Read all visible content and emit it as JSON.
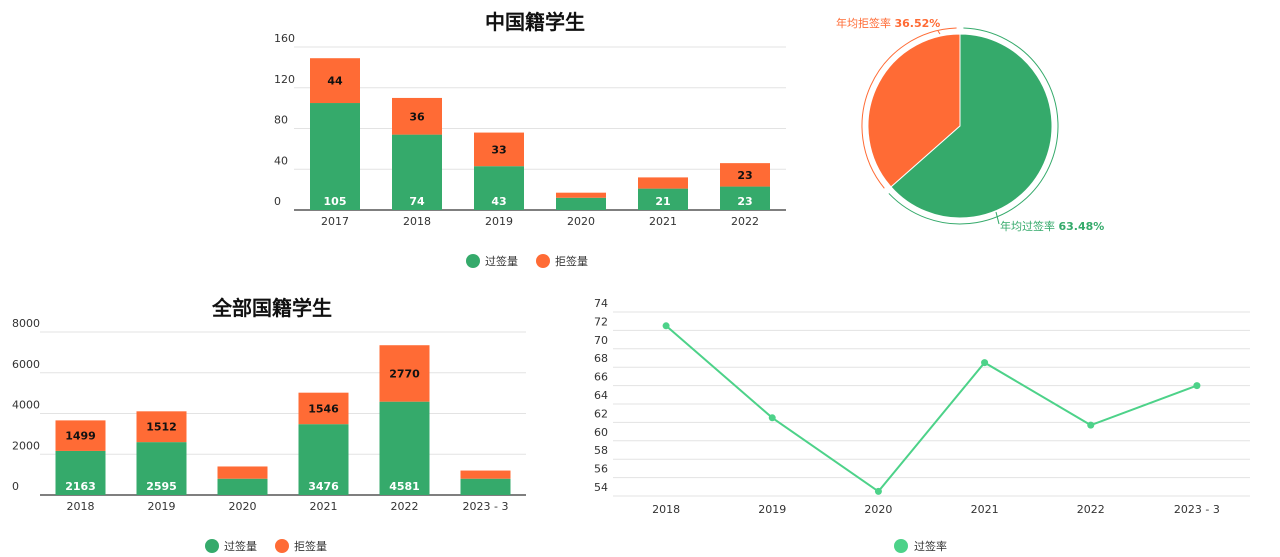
{
  "colors": {
    "pass": "#35aa6b",
    "reject": "#ff6b35",
    "rate_line": "#4dd289"
  },
  "chart_data": [
    {
      "id": "cn",
      "type": "bar",
      "stacked": true,
      "title": "中国籍学生",
      "categories": [
        "2017",
        "2018",
        "2019",
        "2020",
        "2021",
        "2022"
      ],
      "ylim": [
        0,
        160
      ],
      "yticks": [
        "0",
        "40",
        "80",
        "120",
        "160"
      ],
      "series": [
        {
          "name": "过签量",
          "values": [
            105,
            74,
            43,
            12,
            21,
            23
          ],
          "labels": [
            "105",
            "74",
            "43",
            "",
            "21",
            "23"
          ]
        },
        {
          "name": "拒签量",
          "values": [
            44,
            36,
            33,
            5,
            11,
            23
          ],
          "labels": [
            "44",
            "36",
            "33",
            "",
            "",
            "23"
          ]
        }
      ],
      "legend": "bottom",
      "grid": true
    },
    {
      "id": "cn_pie",
      "type": "pie",
      "slices": [
        {
          "name": "年均拒签率",
          "value": 36.52,
          "label_name": "年均拒签率",
          "label_value": "36.52%"
        },
        {
          "name": "年均过签率",
          "value": 63.48,
          "label_name": "年均过签率",
          "label_value": "63.48%"
        }
      ]
    },
    {
      "id": "all",
      "type": "bar",
      "stacked": true,
      "title": "全部国籍学生",
      "categories": [
        "2018",
        "2019",
        "2020",
        "2021",
        "2022",
        "2023 - 3"
      ],
      "ylim": [
        0,
        8000
      ],
      "yticks": [
        "0",
        "2000",
        "4000",
        "6000",
        "8000"
      ],
      "series": [
        {
          "name": "过签量",
          "values": [
            2163,
            2595,
            800,
            3476,
            4581,
            800
          ],
          "labels": [
            "2163",
            "2595",
            "",
            "3476",
            "4581",
            ""
          ]
        },
        {
          "name": "拒签量",
          "values": [
            1499,
            1512,
            600,
            1546,
            2770,
            400
          ],
          "labels": [
            "1499",
            "1512",
            "",
            "1546",
            "2770",
            ""
          ]
        }
      ],
      "legend": "bottom",
      "grid": true
    },
    {
      "id": "rate",
      "type": "line",
      "title": "",
      "categories": [
        "2018",
        "2019",
        "2020",
        "2021",
        "2022",
        "2023 - 3"
      ],
      "ylim": [
        54,
        74
      ],
      "yticks": [
        "54",
        "56",
        "58",
        "60",
        "62",
        "64",
        "66",
        "68",
        "70",
        "72",
        "74"
      ],
      "series": [
        {
          "name": "过签率",
          "values": [
            72.5,
            62.5,
            54.5,
            68.5,
            61.7,
            66
          ]
        }
      ],
      "legend": "bottom",
      "grid": true
    }
  ]
}
